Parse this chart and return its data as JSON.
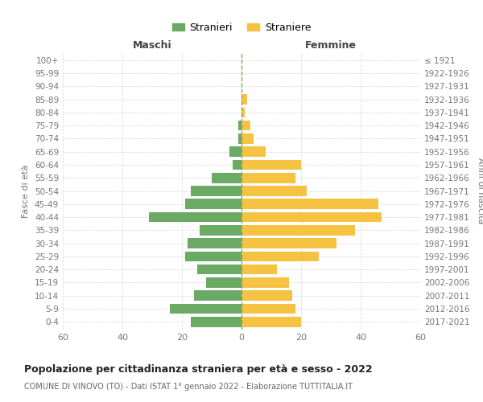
{
  "age_groups": [
    "0-4",
    "5-9",
    "10-14",
    "15-19",
    "20-24",
    "25-29",
    "30-34",
    "35-39",
    "40-44",
    "45-49",
    "50-54",
    "55-59",
    "60-64",
    "65-69",
    "70-74",
    "75-79",
    "80-84",
    "85-89",
    "90-94",
    "95-99",
    "100+"
  ],
  "birth_years": [
    "2017-2021",
    "2012-2016",
    "2007-2011",
    "2002-2006",
    "1997-2001",
    "1992-1996",
    "1987-1991",
    "1982-1986",
    "1977-1981",
    "1972-1976",
    "1967-1971",
    "1962-1966",
    "1957-1961",
    "1952-1956",
    "1947-1951",
    "1942-1946",
    "1937-1941",
    "1932-1936",
    "1927-1931",
    "1922-1926",
    "≤ 1921"
  ],
  "males": [
    17,
    24,
    16,
    12,
    15,
    19,
    18,
    14,
    31,
    19,
    17,
    10,
    3,
    4,
    1,
    1,
    0,
    0,
    0,
    0,
    0
  ],
  "females": [
    20,
    18,
    17,
    16,
    12,
    26,
    32,
    38,
    47,
    46,
    22,
    18,
    20,
    8,
    4,
    3,
    1,
    2,
    0,
    0,
    0
  ],
  "male_color": "#6aaa64",
  "female_color": "#f5c242",
  "title": "Popolazione per cittadinanza straniera per età e sesso - 2022",
  "subtitle": "COMUNE DI VINOVO (TO) - Dati ISTAT 1° gennaio 2022 - Elaborazione TUTTITALIA.IT",
  "xlabel_left": "Maschi",
  "xlabel_right": "Femmine",
  "ylabel_left": "Fasce di età",
  "ylabel_right": "Anni di nascita",
  "legend_male": "Stranieri",
  "legend_female": "Straniere",
  "xlim": 60,
  "background_color": "#ffffff",
  "grid_color": "#dddddd"
}
